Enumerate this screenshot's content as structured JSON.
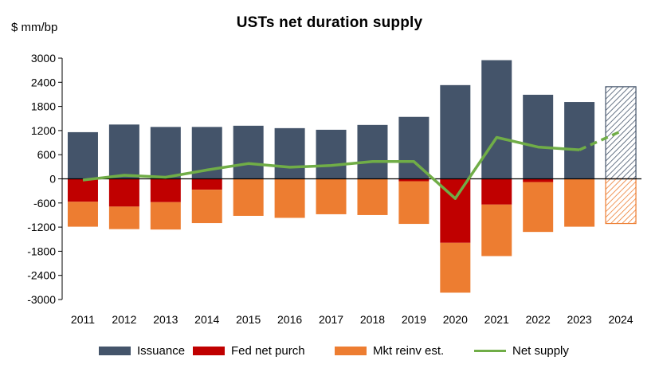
{
  "chart_data": {
    "type": "bar",
    "title": "USTs net duration supply",
    "ylabel": "$ mm/bp",
    "xlabel": "",
    "ylim": [
      -3000,
      3000
    ],
    "yticks": [
      3000,
      2400,
      1800,
      1200,
      600,
      0,
      -600,
      -1200,
      -1800,
      -2400,
      -3000
    ],
    "categories": [
      "2011",
      "2012",
      "2013",
      "2014",
      "2015",
      "2016",
      "2017",
      "2018",
      "2019",
      "2020",
      "2021",
      "2022",
      "2023",
      "2024"
    ],
    "stacked": true,
    "grid": false,
    "legend_position": "bottom",
    "series": [
      {
        "name": "Issuance",
        "kind": "bar",
        "color": "#44546A",
        "values": [
          1160,
          1350,
          1290,
          1290,
          1320,
          1260,
          1220,
          1340,
          1540,
          2330,
          2950,
          2090,
          1910,
          2290
        ]
      },
      {
        "name": "Fed net purch",
        "kind": "bar",
        "color": "#C00000",
        "values": [
          -570,
          -690,
          -580,
          -270,
          0,
          0,
          0,
          0,
          -60,
          -1590,
          -640,
          -80,
          0,
          0
        ]
      },
      {
        "name": "Mkt reinv est.",
        "kind": "bar",
        "color": "#ED7D31",
        "values": [
          -620,
          -560,
          -680,
          -830,
          -920,
          -970,
          -880,
          -900,
          -1060,
          -1240,
          -1280,
          -1240,
          -1190,
          -1110
        ]
      },
      {
        "name": "Net supply",
        "kind": "line",
        "color": "#70AD47",
        "values": [
          -30,
          90,
          40,
          220,
          380,
          290,
          330,
          430,
          430,
          -490,
          1030,
          790,
          720,
          1180
        ]
      }
    ],
    "hatched_category": "2024",
    "line_dashed_from": "2023"
  }
}
